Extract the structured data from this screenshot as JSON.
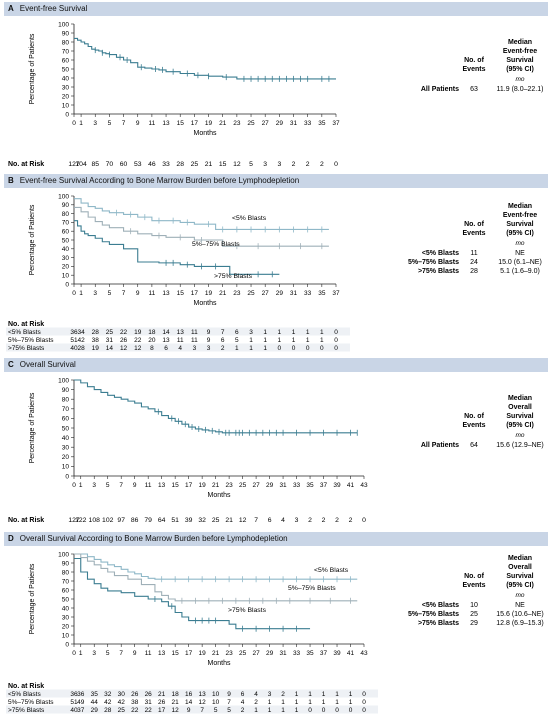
{
  "chart_data": [
    {
      "type": "line",
      "letter": "A",
      "title": "Event-free Survival",
      "ylabel": "Percentage of Patients",
      "xlabel": "Months",
      "xlim": [
        0,
        37
      ],
      "ylim": [
        0,
        100
      ],
      "xticks": [
        0,
        1,
        3,
        5,
        7,
        9,
        11,
        13,
        15,
        17,
        19,
        21,
        23,
        25,
        27,
        29,
        31,
        33,
        35,
        37
      ],
      "yticks": [
        0,
        10,
        20,
        30,
        40,
        50,
        60,
        70,
        80,
        90,
        100
      ],
      "table_header": [
        "No. of Events",
        "Median Event-free Survival (95% CI)",
        "mo"
      ],
      "table_rows": [
        {
          "label": "All Patients",
          "events": "63",
          "median": "11.9 (8.0–22.1)"
        }
      ],
      "series": [
        {
          "name": "All Patients",
          "color": "#3b7d91",
          "x": [
            0,
            0.5,
            1,
            1.5,
            2,
            2.5,
            3,
            3.5,
            4,
            4.5,
            5,
            6,
            7,
            8,
            9,
            10,
            11,
            12,
            13,
            15,
            17,
            19,
            21,
            23,
            37
          ],
          "y": [
            84,
            82,
            80,
            78,
            75,
            72,
            71,
            70,
            68,
            67,
            66,
            63,
            60,
            57,
            52,
            51,
            50,
            49,
            47,
            45,
            43,
            42,
            41,
            39,
            39
          ],
          "censor_x": [
            3,
            4,
            5,
            6.5,
            7.5,
            9.5,
            11.5,
            12.5,
            14,
            16,
            17.5,
            19,
            21.5,
            24,
            25,
            26,
            27,
            28,
            29,
            30,
            31,
            32,
            33,
            35,
            36
          ]
        }
      ],
      "risk": {
        "header": "No. at Risk",
        "rows": [
          {
            "label": "",
            "values": [
              "127",
              "104",
              "85",
              "70",
              "60",
              "53",
              "46",
              "33",
              "28",
              "25",
              "21",
              "15",
              "12",
              "5",
              "3",
              "3",
              "2",
              "2",
              "2",
              "0"
            ]
          }
        ]
      }
    },
    {
      "type": "line",
      "letter": "B",
      "title": "Event-free Survival According to Bone Marrow Burden before Lymphodepletion",
      "ylabel": "Percentage of Patients",
      "xlabel": "Months",
      "xlim": [
        0,
        37
      ],
      "ylim": [
        0,
        100
      ],
      "xticks": [
        0,
        1,
        3,
        5,
        7,
        9,
        11,
        13,
        15,
        17,
        19,
        21,
        23,
        25,
        27,
        29,
        31,
        33,
        35,
        37
      ],
      "yticks": [
        0,
        10,
        20,
        30,
        40,
        50,
        60,
        70,
        80,
        90,
        100
      ],
      "table_header": [
        "No. of Events",
        "Median Event-free Survival (95% CI)",
        "mo"
      ],
      "table_rows": [
        {
          "label": "<5% Blasts",
          "events": "11",
          "median": "NE"
        },
        {
          "label": "5%–75% Blasts",
          "events": "24",
          "median": "15.0 (6.1–NE)"
        },
        {
          "label": ">75% Blasts",
          "events": "28",
          "median": "5.1 (1.6–9.0)"
        }
      ],
      "series": [
        {
          "name": "<5% Blasts",
          "color": "#8fb8c8",
          "x": [
            0,
            1,
            2,
            3,
            4,
            5,
            7,
            9,
            11,
            15,
            17,
            20,
            36
          ],
          "y": [
            97,
            92,
            88,
            86,
            83,
            81,
            79,
            76,
            72,
            70,
            68,
            62,
            62
          ],
          "censor_x": [
            6,
            8,
            10,
            12,
            14,
            16,
            19,
            21,
            23,
            25,
            27,
            29,
            31,
            33,
            35
          ]
        },
        {
          "name": "5%–75% Blasts",
          "color": "#9fb0b8",
          "x": [
            0,
            1,
            2,
            3,
            4,
            5,
            7,
            9,
            11,
            13,
            17,
            21,
            36
          ],
          "y": [
            87,
            82,
            76,
            71,
            67,
            64,
            60,
            57,
            55,
            53,
            50,
            43,
            43
          ],
          "censor_x": [
            8,
            12,
            15,
            18,
            23,
            26,
            29,
            32,
            35
          ]
        },
        {
          "name": ">75% Blasts",
          "color": "#3b7d91",
          "x": [
            0,
            0.5,
            1,
            1.5,
            2,
            3,
            4,
            5,
            7,
            9,
            12,
            15,
            17,
            21,
            22,
            29
          ],
          "y": [
            72,
            66,
            60,
            57,
            55,
            52,
            48,
            45,
            40,
            25,
            24,
            22,
            20,
            20,
            11,
            11
          ],
          "censor_x": [
            13,
            14,
            16,
            18,
            20,
            26,
            28
          ]
        }
      ],
      "risk": {
        "header": "No. at Risk",
        "rows": [
          {
            "label": "<5% Blasts",
            "values": [
              "36",
              "34",
              "28",
              "25",
              "22",
              "19",
              "18",
              "14",
              "13",
              "11",
              "9",
              "7",
              "6",
              "3",
              "1",
              "1",
              "1",
              "1",
              "1",
              "0"
            ]
          },
          {
            "label": "5%–75% Blasts",
            "values": [
              "51",
              "42",
              "38",
              "31",
              "26",
              "22",
              "20",
              "13",
              "11",
              "11",
              "9",
              "6",
              "5",
              "1",
              "1",
              "1",
              "1",
              "1",
              "1",
              "0"
            ]
          },
          {
            "label": ">75% Blasts",
            "values": [
              "40",
              "28",
              "19",
              "14",
              "12",
              "12",
              "8",
              "6",
              "4",
              "3",
              "3",
              "2",
              "1",
              "1",
              "1",
              "0",
              "0",
              "0",
              "0",
              "0"
            ]
          }
        ]
      }
    },
    {
      "type": "line",
      "letter": "C",
      "title": "Overall Survival",
      "ylabel": "Percentage of Patients",
      "xlabel": "Months",
      "xlim": [
        0,
        43
      ],
      "ylim": [
        0,
        100
      ],
      "xticks": [
        0,
        1,
        3,
        5,
        7,
        9,
        11,
        13,
        15,
        17,
        19,
        21,
        23,
        25,
        27,
        29,
        31,
        33,
        35,
        37,
        39,
        41,
        43
      ],
      "yticks": [
        0,
        10,
        20,
        30,
        40,
        50,
        60,
        70,
        80,
        90,
        100
      ],
      "table_header": [
        "No. of Events",
        "Median Overall Survival (95% CI)",
        "mo"
      ],
      "table_rows": [
        {
          "label": "All Patients",
          "events": "64",
          "median": "15.6 (12.9–NE)"
        }
      ],
      "series": [
        {
          "name": "All Patients",
          "color": "#3b7d91",
          "x": [
            0,
            1,
            2,
            3,
            4,
            5,
            6,
            7,
            8,
            9,
            10,
            11,
            12,
            13,
            14,
            15,
            16,
            17,
            18,
            19,
            20,
            21,
            22,
            42
          ],
          "y": [
            100,
            97,
            93,
            90,
            87,
            84,
            82,
            80,
            78,
            76,
            72,
            70,
            67,
            63,
            60,
            57,
            54,
            51,
            49,
            48,
            47,
            46,
            45,
            45
          ],
          "censor_x": [
            12.5,
            14.5,
            15.5,
            16.5,
            17.5,
            18.5,
            19.5,
            20.5,
            21.5,
            22.5,
            23,
            24,
            24.5,
            25,
            26,
            27,
            28,
            29,
            30,
            31,
            33,
            35,
            37,
            39,
            41,
            42
          ]
        }
      ],
      "risk": {
        "header": "No. at Risk",
        "rows": [
          {
            "label": "",
            "values": [
              "127",
              "122",
              "108",
              "102",
              "97",
              "86",
              "79",
              "64",
              "51",
              "39",
              "32",
              "25",
              "21",
              "12",
              "7",
              "6",
              "4",
              "3",
              "2",
              "2",
              "2",
              "2",
              "0"
            ]
          }
        ]
      }
    },
    {
      "type": "line",
      "letter": "D",
      "title": "Overall Survival According to Bone Marrow Burden before Lymphodepletion",
      "ylabel": "Percentage of Patients",
      "xlabel": "Months",
      "xlim": [
        0,
        43
      ],
      "ylim": [
        0,
        100
      ],
      "xticks": [
        0,
        1,
        3,
        5,
        7,
        9,
        11,
        13,
        15,
        17,
        19,
        21,
        23,
        25,
        27,
        29,
        31,
        33,
        35,
        37,
        39,
        41,
        43
      ],
      "yticks": [
        0,
        10,
        20,
        30,
        40,
        50,
        60,
        70,
        80,
        90,
        100
      ],
      "table_header": [
        "No. of Events",
        "Median Overall Survival (95% CI)",
        "mo"
      ],
      "table_rows": [
        {
          "label": "<5% Blasts",
          "events": "10",
          "median": "NE"
        },
        {
          "label": "5%–75% Blasts",
          "events": "25",
          "median": "15.6 (10.6–NE)"
        },
        {
          "label": ">75% Blasts",
          "events": "29",
          "median": "12.8 (6.9–15.3)"
        }
      ],
      "series": [
        {
          "name": "<5% Blasts",
          "color": "#8fb8c8",
          "x": [
            0,
            1,
            2,
            3,
            4,
            5,
            6,
            7,
            8,
            9,
            10,
            11,
            12,
            42
          ],
          "y": [
            100,
            100,
            97,
            94,
            91,
            88,
            86,
            83,
            80,
            78,
            75,
            73,
            72,
            72
          ],
          "censor_x": [
            13,
            15,
            17,
            19,
            21,
            23,
            25,
            27,
            29,
            31,
            33,
            35,
            37,
            39,
            41
          ]
        },
        {
          "name": "5%–75% Blasts",
          "color": "#9fb0b8",
          "x": [
            0,
            1,
            2,
            3,
            4,
            5,
            6,
            8,
            10,
            12,
            13,
            14,
            15,
            42
          ],
          "y": [
            100,
            96,
            92,
            88,
            84,
            80,
            76,
            72,
            66,
            58,
            54,
            50,
            48,
            48
          ],
          "censor_x": [
            16,
            18,
            20,
            22,
            24,
            26,
            28,
            30,
            32,
            35,
            38,
            41
          ]
        },
        {
          "name": ">75% Blasts",
          "color": "#3b7d91",
          "x": [
            0,
            1,
            2,
            3,
            4,
            5,
            7,
            9,
            11,
            13,
            14,
            15,
            16,
            17,
            22,
            23,
            24,
            35
          ],
          "y": [
            95,
            80,
            72,
            67,
            62,
            59,
            57,
            53,
            50,
            47,
            42,
            35,
            30,
            26,
            26,
            22,
            17,
            17
          ],
          "censor_x": [
            12,
            14.5,
            18,
            19,
            20,
            21,
            25,
            27,
            29,
            31,
            33
          ]
        }
      ],
      "risk": {
        "header": "No. at Risk",
        "rows": [
          {
            "label": "<5% Blasts",
            "values": [
              "36",
              "36",
              "35",
              "32",
              "30",
              "26",
              "26",
              "21",
              "18",
              "16",
              "13",
              "10",
              "9",
              "6",
              "4",
              "3",
              "2",
              "1",
              "1",
              "1",
              "1",
              "1",
              "0"
            ]
          },
          {
            "label": "5%–75% Blasts",
            "values": [
              "51",
              "49",
              "44",
              "42",
              "42",
              "38",
              "31",
              "26",
              "21",
              "14",
              "12",
              "10",
              "7",
              "4",
              "2",
              "1",
              "1",
              "1",
              "1",
              "1",
              "1",
              "1",
              "0"
            ]
          },
          {
            "label": ">75% Blasts",
            "values": [
              "40",
              "37",
              "29",
              "28",
              "25",
              "22",
              "22",
              "17",
              "12",
              "9",
              "7",
              "5",
              "5",
              "2",
              "1",
              "1",
              "1",
              "1",
              "0",
              "0",
              "0",
              "0",
              "0"
            ]
          }
        ]
      }
    }
  ]
}
